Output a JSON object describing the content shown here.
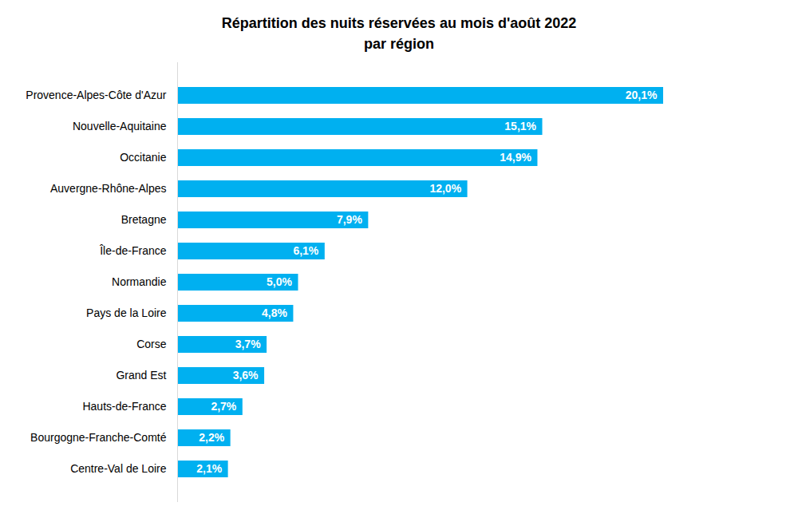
{
  "chart_data": {
    "type": "bar",
    "orientation": "horizontal",
    "title": "Répartition des nuits réservées au mois d'août 2022\npar région",
    "categories": [
      "Provence-Alpes-Côte d'Azur",
      "Nouvelle-Aquitaine",
      "Occitanie",
      "Auvergne-Rhône-Alpes",
      "Bretagne",
      "Île-de-France",
      "Normandie",
      "Pays de la Loire",
      "Corse",
      "Grand Est",
      "Hauts-de-France",
      "Bourgogne-Franche-Comté",
      "Centre-Val de Loire"
    ],
    "values": [
      20.1,
      15.1,
      14.9,
      12.0,
      7.9,
      6.1,
      5.0,
      4.8,
      3.7,
      3.6,
      2.7,
      2.2,
      2.1
    ],
    "value_labels": [
      "20,1%",
      "15,1%",
      "14,9%",
      "12,0%",
      "7,9%",
      "6,1%",
      "5,0%",
      "4,8%",
      "3,7%",
      "3,6%",
      "2,7%",
      "2,2%",
      "2,1%"
    ],
    "color": "#00b0f0",
    "data_labels": true,
    "tick_labels": "y"
  }
}
